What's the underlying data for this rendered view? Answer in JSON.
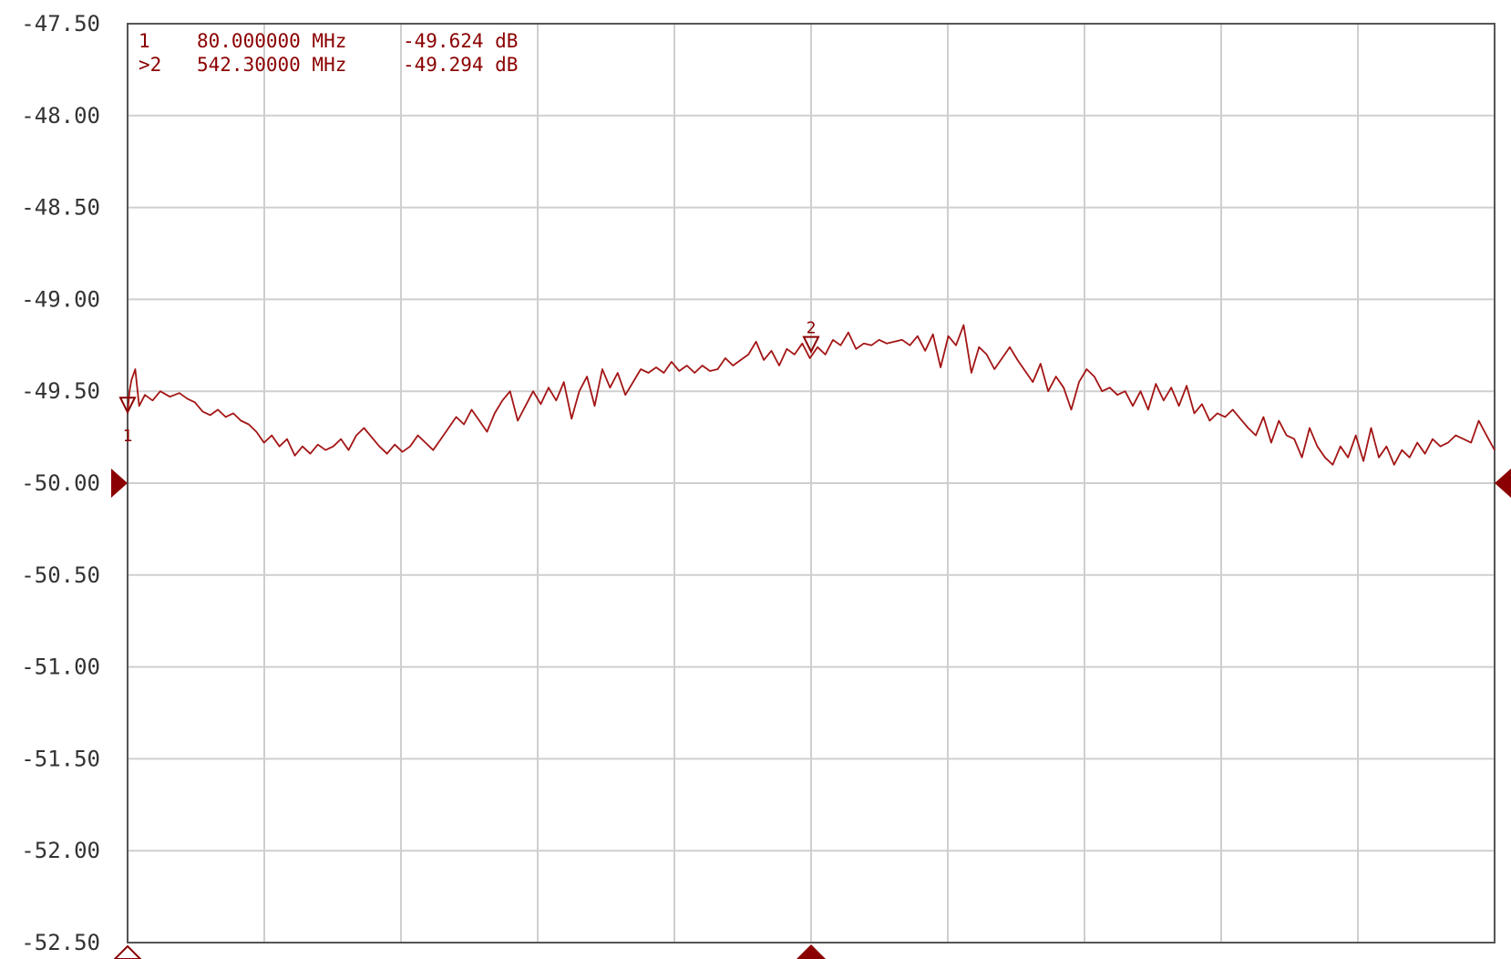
{
  "chart_data": {
    "type": "line",
    "title": "",
    "xlabel": "",
    "ylabel": "",
    "ylim": [
      -52.5,
      -47.5
    ],
    "xlim": [
      80.0,
      1004.6
    ],
    "x_unit": "MHz",
    "y_unit": "dB",
    "grid": true,
    "y_tick_labels": [
      "-47.50",
      "-48.00",
      "-48.50",
      "-49.00",
      "-49.50",
      "-50.00",
      "-50.50",
      "-51.00",
      "-51.50",
      "-52.00",
      "-52.50"
    ],
    "reference_level": -50.0,
    "colors": {
      "trace": "#a31515",
      "text": "#8b0000",
      "grid": "#cfcfcf",
      "frame": "#555555",
      "tick_text": "#333333"
    },
    "markers": [
      {
        "id": "1",
        "prefix": " ",
        "freq": "80.000000 MHz",
        "value": "-49.624 dB",
        "x": 80.0,
        "y": -49.624
      },
      {
        "id": "2",
        "prefix": ">",
        "freq": "542.30000 MHz",
        "value": "-49.294 dB",
        "x": 542.3,
        "y": -49.294
      }
    ],
    "series": [
      {
        "values": [
          [
            80.0,
            -49.62
          ],
          [
            81.3,
            -49.5
          ],
          [
            82.6,
            -49.44
          ],
          [
            85.2,
            -49.38
          ],
          [
            87.8,
            -49.58
          ],
          [
            91.7,
            -49.52
          ],
          [
            96.9,
            -49.55
          ],
          [
            102.1,
            -49.5
          ],
          [
            108.6,
            -49.53
          ],
          [
            115.1,
            -49.51
          ],
          [
            120.3,
            -49.54
          ],
          [
            125.5,
            -49.56
          ],
          [
            130.7,
            -49.61
          ],
          [
            135.9,
            -49.63
          ],
          [
            141.1,
            -49.6
          ],
          [
            146.3,
            -49.64
          ],
          [
            151.5,
            -49.62
          ],
          [
            156.7,
            -49.66
          ],
          [
            161.9,
            -49.68
          ],
          [
            167.1,
            -49.72
          ],
          [
            172.3,
            -49.78
          ],
          [
            177.5,
            -49.74
          ],
          [
            182.7,
            -49.8
          ],
          [
            187.9,
            -49.76
          ],
          [
            193.1,
            -49.85
          ],
          [
            198.3,
            -49.8
          ],
          [
            203.5,
            -49.84
          ],
          [
            208.7,
            -49.79
          ],
          [
            213.9,
            -49.82
          ],
          [
            219.1,
            -49.8
          ],
          [
            224.3,
            -49.76
          ],
          [
            229.5,
            -49.82
          ],
          [
            234.7,
            -49.74
          ],
          [
            239.9,
            -49.7
          ],
          [
            245.1,
            -49.75
          ],
          [
            250.3,
            -49.8
          ],
          [
            255.5,
            -49.84
          ],
          [
            260.7,
            -49.79
          ],
          [
            265.9,
            -49.83
          ],
          [
            271.1,
            -49.8
          ],
          [
            276.3,
            -49.74
          ],
          [
            281.5,
            -49.78
          ],
          [
            286.7,
            -49.82
          ],
          [
            291.9,
            -49.76
          ],
          [
            297.1,
            -49.7
          ],
          [
            302.3,
            -49.64
          ],
          [
            307.5,
            -49.68
          ],
          [
            312.7,
            -49.6
          ],
          [
            317.9,
            -49.66
          ],
          [
            323.1,
            -49.72
          ],
          [
            328.3,
            -49.62
          ],
          [
            333.5,
            -49.55
          ],
          [
            338.7,
            -49.5
          ],
          [
            343.9,
            -49.66
          ],
          [
            349.1,
            -49.58
          ],
          [
            354.3,
            -49.5
          ],
          [
            359.5,
            -49.57
          ],
          [
            364.7,
            -49.48
          ],
          [
            369.9,
            -49.55
          ],
          [
            375.1,
            -49.45
          ],
          [
            380.3,
            -49.65
          ],
          [
            385.5,
            -49.5
          ],
          [
            390.7,
            -49.42
          ],
          [
            395.9,
            -49.58
          ],
          [
            401.1,
            -49.38
          ],
          [
            406.3,
            -49.48
          ],
          [
            411.5,
            -49.4
          ],
          [
            416.7,
            -49.52
          ],
          [
            421.9,
            -49.45
          ],
          [
            427.1,
            -49.38
          ],
          [
            432.3,
            -49.4
          ],
          [
            437.5,
            -49.37
          ],
          [
            442.7,
            -49.4
          ],
          [
            447.9,
            -49.34
          ],
          [
            453.1,
            -49.39
          ],
          [
            458.3,
            -49.36
          ],
          [
            463.5,
            -49.4
          ],
          [
            468.7,
            -49.36
          ],
          [
            473.9,
            -49.39
          ],
          [
            479.1,
            -49.38
          ],
          [
            484.3,
            -49.32
          ],
          [
            489.5,
            -49.36
          ],
          [
            494.7,
            -49.33
          ],
          [
            499.9,
            -49.3
          ],
          [
            505.1,
            -49.23
          ],
          [
            510.3,
            -49.33
          ],
          [
            515.5,
            -49.28
          ],
          [
            520.7,
            -49.36
          ],
          [
            525.9,
            -49.27
          ],
          [
            531.1,
            -49.3
          ],
          [
            536.3,
            -49.24
          ],
          [
            541.5,
            -49.32
          ],
          [
            546.7,
            -49.26
          ],
          [
            551.9,
            -49.3
          ],
          [
            557.1,
            -49.22
          ],
          [
            562.3,
            -49.25
          ],
          [
            567.5,
            -49.18
          ],
          [
            572.7,
            -49.27
          ],
          [
            577.9,
            -49.24
          ],
          [
            583.1,
            -49.25
          ],
          [
            588.3,
            -49.22
          ],
          [
            593.5,
            -49.24
          ],
          [
            598.7,
            -49.23
          ],
          [
            603.9,
            -49.22
          ],
          [
            609.1,
            -49.25
          ],
          [
            614.3,
            -49.2
          ],
          [
            619.5,
            -49.28
          ],
          [
            624.7,
            -49.19
          ],
          [
            629.9,
            -49.37
          ],
          [
            635.1,
            -49.2
          ],
          [
            640.3,
            -49.25
          ],
          [
            645.5,
            -49.14
          ],
          [
            650.7,
            -49.4
          ],
          [
            655.9,
            -49.26
          ],
          [
            661.1,
            -49.3
          ],
          [
            666.3,
            -49.38
          ],
          [
            671.5,
            -49.32
          ],
          [
            676.7,
            -49.26
          ],
          [
            681.9,
            -49.33
          ],
          [
            687.1,
            -49.39
          ],
          [
            692.3,
            -49.45
          ],
          [
            697.5,
            -49.35
          ],
          [
            702.7,
            -49.5
          ],
          [
            707.9,
            -49.42
          ],
          [
            713.1,
            -49.48
          ],
          [
            718.3,
            -49.6
          ],
          [
            723.5,
            -49.45
          ],
          [
            728.7,
            -49.38
          ],
          [
            733.9,
            -49.42
          ],
          [
            739.1,
            -49.5
          ],
          [
            744.3,
            -49.48
          ],
          [
            749.5,
            -49.52
          ],
          [
            754.7,
            -49.5
          ],
          [
            759.9,
            -49.58
          ],
          [
            765.1,
            -49.5
          ],
          [
            770.3,
            -49.6
          ],
          [
            775.5,
            -49.46
          ],
          [
            780.7,
            -49.55
          ],
          [
            785.9,
            -49.48
          ],
          [
            791.1,
            -49.58
          ],
          [
            796.3,
            -49.47
          ],
          [
            801.5,
            -49.62
          ],
          [
            806.7,
            -49.57
          ],
          [
            811.9,
            -49.66
          ],
          [
            817.1,
            -49.62
          ],
          [
            822.3,
            -49.64
          ],
          [
            827.5,
            -49.6
          ],
          [
            832.7,
            -49.65
          ],
          [
            837.9,
            -49.7
          ],
          [
            843.1,
            -49.74
          ],
          [
            848.3,
            -49.64
          ],
          [
            853.5,
            -49.78
          ],
          [
            858.7,
            -49.66
          ],
          [
            863.9,
            -49.74
          ],
          [
            869.1,
            -49.76
          ],
          [
            874.3,
            -49.86
          ],
          [
            879.5,
            -49.7
          ],
          [
            884.7,
            -49.8
          ],
          [
            889.9,
            -49.86
          ],
          [
            895.1,
            -49.9
          ],
          [
            900.3,
            -49.8
          ],
          [
            905.5,
            -49.86
          ],
          [
            910.7,
            -49.74
          ],
          [
            915.9,
            -49.88
          ],
          [
            921.1,
            -49.7
          ],
          [
            926.3,
            -49.86
          ],
          [
            931.5,
            -49.8
          ],
          [
            936.7,
            -49.9
          ],
          [
            941.9,
            -49.82
          ],
          [
            947.1,
            -49.86
          ],
          [
            952.3,
            -49.78
          ],
          [
            957.5,
            -49.84
          ],
          [
            962.7,
            -49.76
          ],
          [
            967.9,
            -49.8
          ],
          [
            973.1,
            -49.78
          ],
          [
            978.3,
            -49.74
          ],
          [
            983.5,
            -49.76
          ],
          [
            988.7,
            -49.78
          ],
          [
            993.9,
            -49.66
          ],
          [
            999.1,
            -49.74
          ],
          [
            1004.6,
            -49.82
          ]
        ]
      }
    ]
  }
}
